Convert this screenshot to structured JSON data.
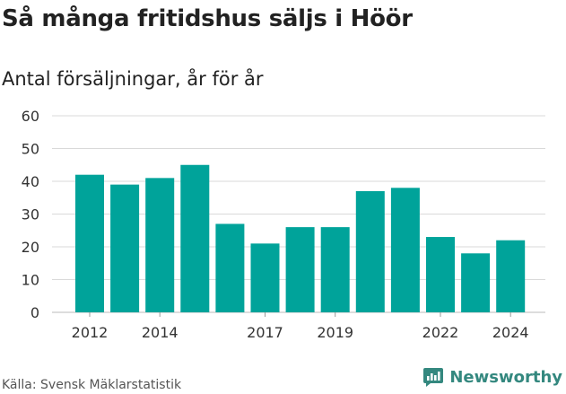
{
  "header": {
    "title": "Så många fritidshus säljs i Höör",
    "subtitle": "Antal försäljningar, år för år"
  },
  "footer": {
    "source": "Källa: Svensk Mäklarstatistik",
    "brand": "Newsworthy"
  },
  "colors": {
    "bar": "#00a39a",
    "grid": "#d9d9d9",
    "brand": "#34887f"
  },
  "chart_data": {
    "type": "bar",
    "title": "Så många fritidshus säljs i Höör",
    "subtitle": "Antal försäljningar, år för år",
    "categories": [
      "2012",
      "2013",
      "2014",
      "2015",
      "2016",
      "2017",
      "2018",
      "2019",
      "2020",
      "2021",
      "2022",
      "2023",
      "2024"
    ],
    "values": [
      42,
      39,
      41,
      45,
      27,
      21,
      26,
      26,
      37,
      38,
      23,
      18,
      22
    ],
    "x_tick_labels": [
      "2012",
      "2014",
      "2017",
      "2019",
      "2022",
      "2024"
    ],
    "y_ticks": [
      0,
      10,
      20,
      30,
      40,
      50,
      60
    ],
    "ylim": [
      0,
      60
    ],
    "grid": true,
    "legend": "none"
  }
}
